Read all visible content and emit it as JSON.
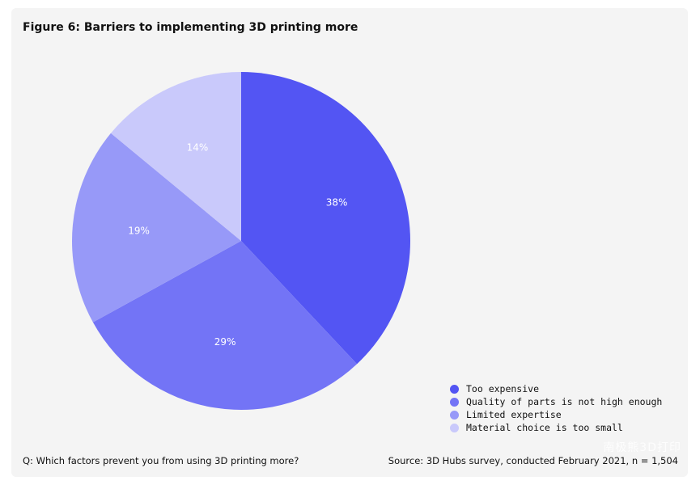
{
  "figure": {
    "title": "Figure 6: Barriers to implementing 3D printing more",
    "question": "Q: Which factors prevent you from using 3D printing more?",
    "source": "Source: 3D Hubs survey, conducted February 2021, n = 1,504",
    "watermark": "南极熊3D打印"
  },
  "chart_data": {
    "type": "pie",
    "title": "Figure 6: Barriers to implementing 3D printing more",
    "slices": [
      {
        "label": "Too expensive",
        "value": 38,
        "display": "38%",
        "color": "#5355f3"
      },
      {
        "label": "Quality of parts is not high enough",
        "value": 29,
        "display": "29%",
        "color": "#7374f6"
      },
      {
        "label": "Limited expertise",
        "value": 19,
        "display": "19%",
        "color": "#9799f8"
      },
      {
        "label": "Material choice is too small",
        "value": 14,
        "display": "14%",
        "color": "#c9c9fb",
        "label_color": "#5355f3"
      }
    ],
    "legend_position": "bottom-right"
  }
}
